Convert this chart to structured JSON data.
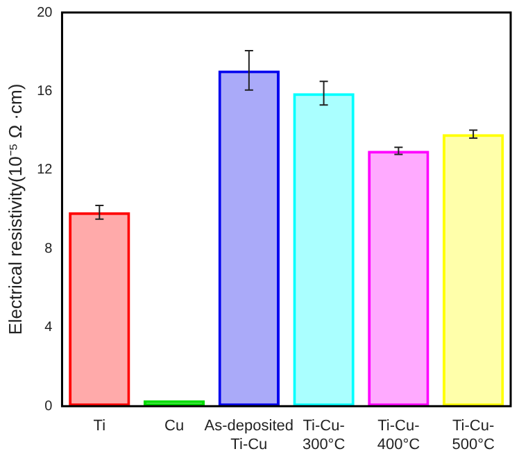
{
  "chart_data": {
    "type": "bar",
    "ylabel": "Electrical resistivity(10⁻⁵ Ω ·cm)",
    "categories": [
      "Ti",
      "Cu",
      "As-deposited Ti-Cu",
      "Ti-Cu-300°C",
      "Ti-Cu-400°C",
      "Ti-Cu-500°C"
    ],
    "values": [
      9.85,
      0.3,
      17.06,
      15.9,
      12.97,
      13.82
    ],
    "errors": [
      0.35,
      null,
      1.0,
      0.6,
      0.18,
      0.2
    ],
    "colors": [
      "#ff0000",
      "#00dd00",
      "#0000ee",
      "#00ffff",
      "#ff00ff",
      "#ffff00"
    ],
    "ylim": [
      0,
      20
    ],
    "yticks": [
      0,
      4,
      8,
      12,
      16,
      20
    ],
    "grid": false,
    "legend": false
  }
}
